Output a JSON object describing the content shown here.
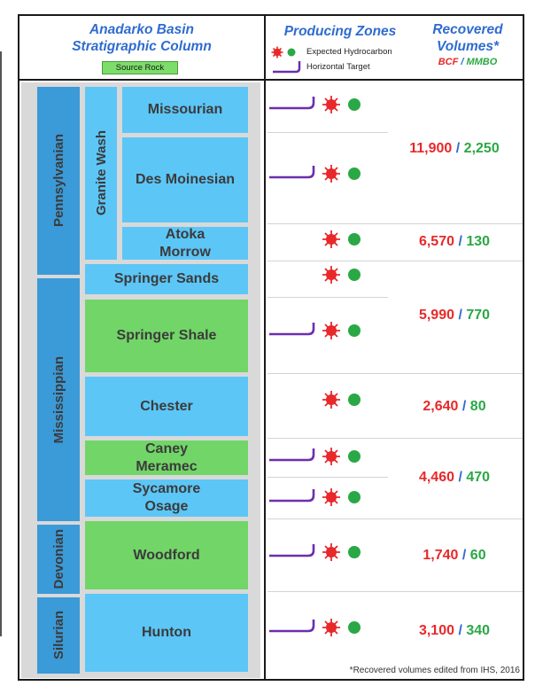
{
  "header": {
    "column_title_line1": "Anadarko Basin",
    "column_title_line2": "Stratigraphic Column",
    "source_rock_label": "Source Rock",
    "producing_zones_title": "Producing Zones",
    "legend_expected": "Expected Hydrocarbon",
    "legend_target": "Horizontal Target",
    "recovered_line1": "Recovered",
    "recovered_line2": "Volumes*",
    "unit_bcf": "BCF",
    "unit_sep": " / ",
    "unit_mmbo": "MMBO"
  },
  "periods": [
    "Pennsylvanian",
    "Mississippian",
    "Devonian",
    "Silurian"
  ],
  "group_label": "Granite Wash",
  "formations": [
    {
      "name": "Missourian",
      "color": "#5cc6f7"
    },
    {
      "name": "Des Moinesian",
      "color": "#5cc6f7"
    },
    {
      "line1": "Atoka",
      "line2": "Morrow",
      "color": "#5cc6f7"
    },
    {
      "name": "Springer Sands",
      "color": "#5cc6f7"
    },
    {
      "name": "Springer Shale",
      "color": "#72d568"
    },
    {
      "name": "Chester",
      "color": "#5cc6f7"
    },
    {
      "line1": "Caney",
      "line2": "Meramec",
      "color": "#72d568"
    },
    {
      "line1": "Sycamore",
      "line2": "Osage",
      "color": "#5cc6f7"
    },
    {
      "name": "Woodford",
      "color": "#72d568"
    },
    {
      "name": "Hunton",
      "color": "#5cc6f7"
    }
  ],
  "volumes": [
    {
      "bcf": "11,900",
      "mmbo": "2,250"
    },
    {
      "bcf": "6,570",
      "mmbo": "130"
    },
    {
      "bcf": "5,990",
      "mmbo": "770"
    },
    {
      "bcf": "2,640",
      "mmbo": "80"
    },
    {
      "bcf": "4,460",
      "mmbo": "470"
    },
    {
      "bcf": "1,740",
      "mmbo": "60"
    },
    {
      "bcf": "3,100",
      "mmbo": "340"
    }
  ],
  "footnote": "*Recovered volumes edited from IHS, 2016",
  "colors": {
    "title_blue": "#2f6ccf",
    "formation_blue": "#5cc6f7",
    "period_blue": "#3b9ad8",
    "source_green": "#72d568",
    "gas_red": "#e8282a",
    "oil_green": "#2aa845",
    "target_purple": "#6a2fae"
  }
}
